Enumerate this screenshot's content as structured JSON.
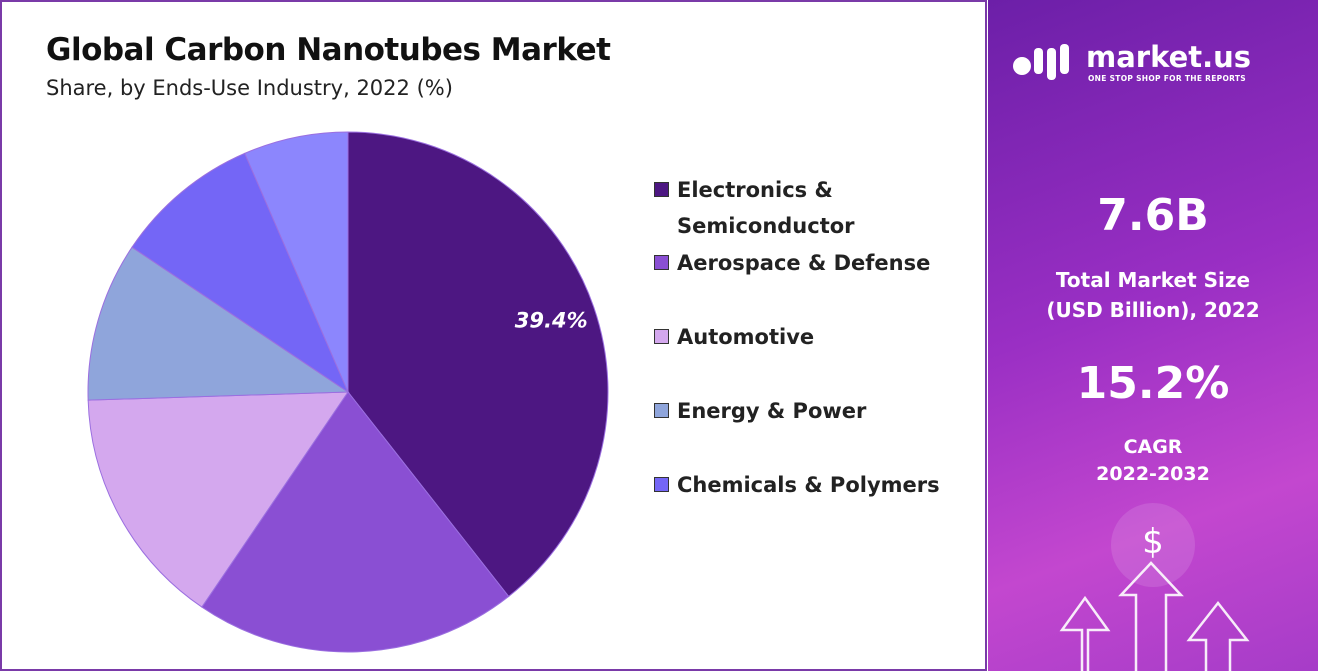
{
  "chart_data": {
    "type": "pie",
    "title": "Global Carbon Nanotubes Market",
    "subtitle": "Share, by Ends-Use Industry, 2022 (%)",
    "categories": [
      "Electronics & Semiconductor",
      "Aerospace & Defense",
      "Automotive",
      "Energy & Power",
      "Chemicals & Polymers",
      null
    ],
    "values": [
      39.4,
      20.1,
      15.0,
      9.9,
      9.1,
      6.5
    ],
    "value_labels": [
      "39.4%",
      null,
      null,
      null,
      null,
      null
    ],
    "colors": [
      "#4d1782",
      "#8a4fd3",
      "#d4a8ee",
      "#8fa5db",
      "#7466f6",
      "#8c86fd"
    ],
    "legend": "right"
  },
  "side_panel": {
    "brand": "market.us",
    "tagline": "ONE STOP SHOP FOR THE REPORTS",
    "market_size": "7.6B",
    "market_size_label": [
      "Total Market Size",
      "(USD Billion), 2022"
    ],
    "cagr": "15.2%",
    "cagr_label": [
      "CAGR",
      "2022-2032"
    ],
    "icon": "$"
  }
}
